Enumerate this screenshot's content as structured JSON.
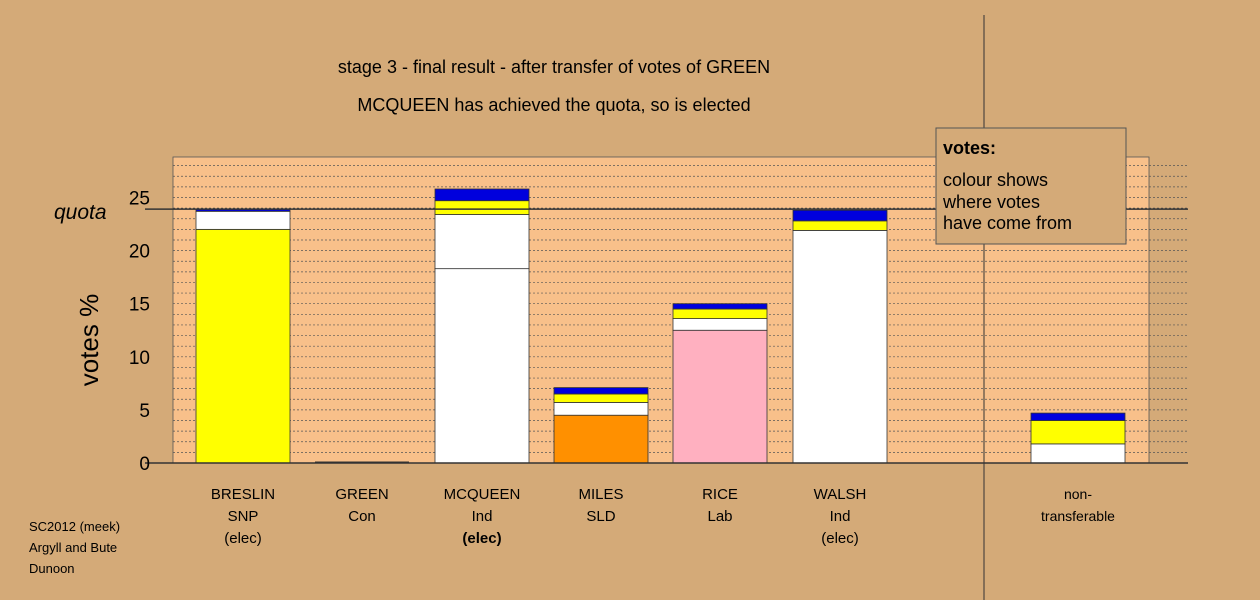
{
  "chart_data": {
    "type": "bar",
    "stacked": true,
    "title": "stage 3 - final result - after transfer of votes of GREEN",
    "subtitle": "MCQUEEN has achieved the quota, so is elected",
    "ylabel": "votes %",
    "ylim": [
      0,
      28.8
    ],
    "yticks": [
      0,
      5,
      10,
      15,
      20,
      25
    ],
    "grid": true,
    "quota": {
      "label": "quota",
      "value": 23.9
    },
    "categories": [
      {
        "lines": [
          "BRESLIN",
          "SNP",
          "(elec)"
        ],
        "bold": [
          false,
          false,
          false
        ]
      },
      {
        "lines": [
          "GREEN",
          "Con"
        ],
        "bold": [
          false,
          false
        ]
      },
      {
        "lines": [
          "MCQUEEN",
          "Ind",
          "(elec)"
        ],
        "bold": [
          false,
          false,
          true
        ]
      },
      {
        "lines": [
          "MILES",
          "SLD"
        ],
        "bold": [
          false,
          false
        ]
      },
      {
        "lines": [
          "RICE",
          "Lab"
        ],
        "bold": [
          false,
          false
        ]
      },
      {
        "lines": [
          "WALSH",
          "Ind",
          "(elec)"
        ],
        "bold": [
          false,
          false,
          false
        ]
      },
      {
        "lines": [
          "non-",
          "transferable"
        ],
        "bold": [
          false,
          false
        ]
      }
    ],
    "stacks": [
      [
        {
          "value": 22.0,
          "color": "#ffff00"
        },
        {
          "value": 1.7,
          "color": "#ffffff"
        },
        {
          "value": 0.2,
          "color": "#0000dd"
        }
      ],
      [],
      [
        {
          "value": 18.3,
          "color": "#ffffff"
        },
        {
          "value": 5.1,
          "color": "#ffffff"
        },
        {
          "value": 1.3,
          "color": "#ffff00"
        },
        {
          "value": 1.1,
          "color": "#0000dd"
        }
      ],
      [
        {
          "value": 4.5,
          "color": "#ff9000"
        },
        {
          "value": 1.2,
          "color": "#ffffff"
        },
        {
          "value": 0.8,
          "color": "#ffff00"
        },
        {
          "value": 0.6,
          "color": "#0000dd"
        }
      ],
      [
        {
          "value": 12.5,
          "color": "#ffb0c0"
        },
        {
          "value": 1.1,
          "color": "#ffffff"
        },
        {
          "value": 0.9,
          "color": "#ffff00"
        },
        {
          "value": 0.5,
          "color": "#0000dd"
        }
      ],
      [
        {
          "value": 21.9,
          "color": "#ffffff"
        },
        {
          "value": 0.9,
          "color": "#ffff00"
        },
        {
          "value": 1.0,
          "color": "#0000dd"
        }
      ],
      [
        {
          "value": 1.8,
          "color": "#ffffff"
        },
        {
          "value": 2.2,
          "color": "#ffff00"
        },
        {
          "value": 0.7,
          "color": "#0000dd"
        }
      ]
    ],
    "legend": {
      "position": "top-right",
      "title": "votes:",
      "lines": [
        "colour shows",
        "where votes",
        "have come from"
      ]
    }
  },
  "footer": {
    "lines": [
      "SC2012 (meek)",
      "Argyll and Bute",
      "Dunoon"
    ]
  },
  "colors": {
    "background": "#d4aa78",
    "plot_area": "#f8c08a",
    "legend_bg": "#d4aa78"
  }
}
